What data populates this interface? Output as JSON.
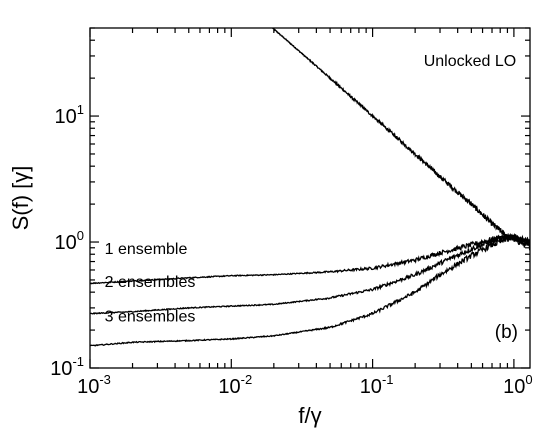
{
  "chart_data": {
    "type": "line",
    "title": "",
    "xlabel": "f/γ",
    "ylabel": "S(f) [γ]",
    "xscale": "log",
    "yscale": "log",
    "xlim": [
      0.001,
      1.3
    ],
    "ylim": [
      0.1,
      50
    ],
    "grid": false,
    "legend": "none",
    "x_ticks": [
      {
        "base": "10",
        "exp": "-3",
        "value": 0.001
      },
      {
        "base": "10",
        "exp": "-2",
        "value": 0.01
      },
      {
        "base": "10",
        "exp": "-1",
        "value": 0.1
      },
      {
        "base": "10",
        "exp": "0",
        "value": 1
      }
    ],
    "y_ticks": [
      {
        "base": "10",
        "exp": "-1",
        "value": 0.1
      },
      {
        "base": "10",
        "exp": "0",
        "value": 1
      },
      {
        "base": "10",
        "exp": "1",
        "value": 10
      }
    ],
    "panel_label": "(b)",
    "series": [
      {
        "name": "Unlocked LO",
        "x": [
          0.0196,
          0.03,
          0.05,
          0.1,
          0.2,
          0.3,
          0.5,
          0.7,
          0.9,
          1.0,
          1.1,
          1.2,
          1.3
        ],
        "y": [
          50,
          33,
          20,
          10,
          5,
          3.3,
          2.0,
          1.4,
          1.1,
          1.05,
          1.0,
          0.95,
          0.92
        ]
      },
      {
        "name": "1 ensemble",
        "x": [
          0.001,
          0.002,
          0.005,
          0.01,
          0.02,
          0.05,
          0.1,
          0.2,
          0.3,
          0.5,
          0.7,
          0.9,
          1.0,
          1.1,
          1.3
        ],
        "y": [
          0.47,
          0.49,
          0.52,
          0.54,
          0.55,
          0.58,
          0.62,
          0.72,
          0.82,
          0.95,
          1.05,
          1.1,
          1.1,
          1.05,
          1.0
        ]
      },
      {
        "name": "2 ensembles",
        "x": [
          0.001,
          0.002,
          0.005,
          0.01,
          0.02,
          0.05,
          0.1,
          0.2,
          0.3,
          0.5,
          0.7,
          0.9,
          1.0,
          1.1,
          1.3
        ],
        "y": [
          0.27,
          0.28,
          0.3,
          0.31,
          0.32,
          0.36,
          0.42,
          0.55,
          0.68,
          0.88,
          1.02,
          1.1,
          1.1,
          1.05,
          1.0
        ]
      },
      {
        "name": "3 ensembles",
        "x": [
          0.001,
          0.002,
          0.005,
          0.01,
          0.02,
          0.05,
          0.1,
          0.2,
          0.3,
          0.5,
          0.7,
          0.9,
          1.0,
          1.1,
          1.3
        ],
        "y": [
          0.15,
          0.16,
          0.165,
          0.17,
          0.18,
          0.21,
          0.27,
          0.4,
          0.55,
          0.78,
          0.95,
          1.05,
          1.08,
          1.05,
          1.0
        ]
      }
    ],
    "annotations": [
      {
        "text": "Unlocked LO",
        "series": 0
      },
      {
        "text": "1 ensemble",
        "series": 1
      },
      {
        "text": "2 ensembles",
        "series": 2
      },
      {
        "text": "3 ensembles",
        "series": 3
      }
    ]
  }
}
